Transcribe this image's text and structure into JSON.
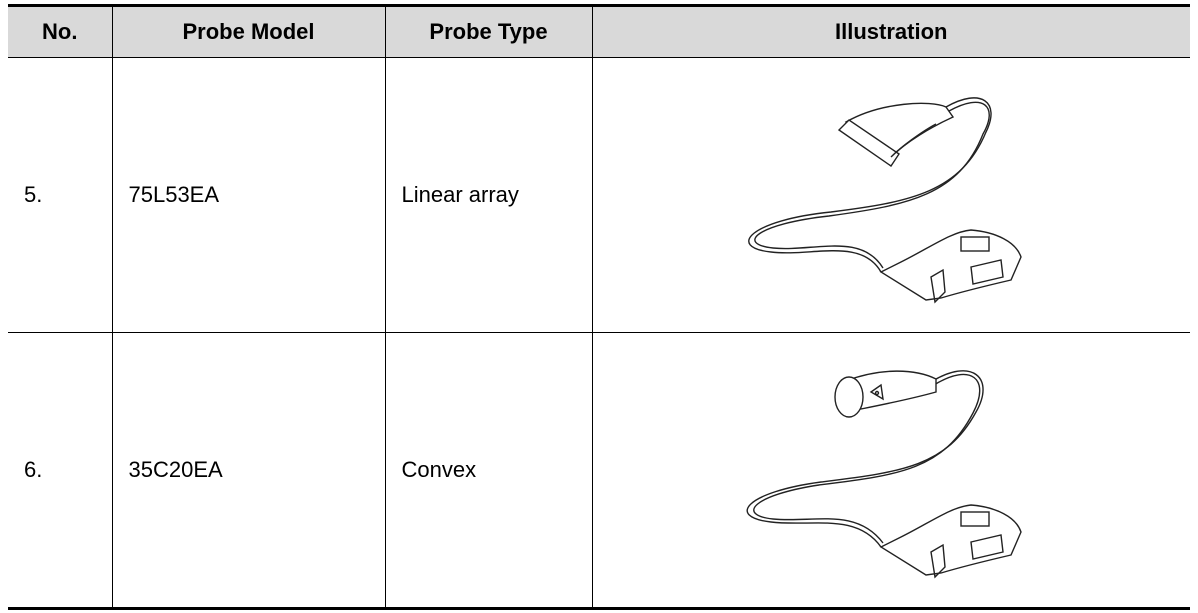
{
  "table": {
    "header": [
      "No.",
      "Probe Model",
      "Probe Type",
      "Illustration"
    ],
    "rows": [
      [
        "5.",
        "75L53EA",
        "Linear array"
      ],
      [
        "6.",
        "35C20EA",
        "Convex"
      ]
    ]
  }
}
